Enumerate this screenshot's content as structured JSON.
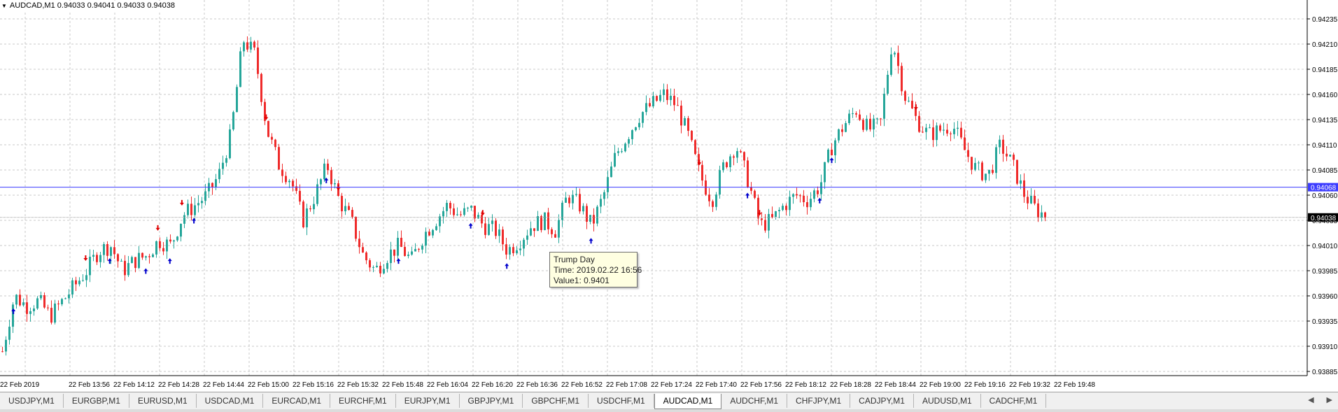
{
  "header": {
    "text": "AUDCAD,M1  0.94033 0.94041 0.94033 0.94038"
  },
  "tooltip": {
    "line1": "Trump Day",
    "line2": "Time: 2019.02.22 16:56",
    "line3": "Value1: 0.9401"
  },
  "price_axis": {
    "labels": [
      "0.94235",
      "0.94210",
      "0.94185",
      "0.94160",
      "0.94135",
      "0.94110",
      "0.94085",
      "0.94060",
      "0.94035",
      "0.94010",
      "0.93985",
      "0.93960",
      "0.93935",
      "0.93910",
      "0.93885"
    ],
    "line_label": "0.94068",
    "current_label": "0.94038"
  },
  "time_axis": {
    "labels": [
      "22 Feb 2019",
      "22 Feb 13:56",
      "22 Feb 14:12",
      "22 Feb 14:28",
      "22 Feb 14:44",
      "22 Feb 15:00",
      "22 Feb 15:16",
      "22 Feb 15:32",
      "22 Feb 15:48",
      "22 Feb 16:04",
      "22 Feb 16:20",
      "22 Feb 16:36",
      "22 Feb 16:52",
      "22 Feb 17:08",
      "22 Feb 17:24",
      "22 Feb 17:40",
      "22 Feb 17:56",
      "22 Feb 18:12",
      "22 Feb 18:28",
      "22 Feb 18:44",
      "22 Feb 19:00",
      "22 Feb 19:16",
      "22 Feb 19:32",
      "22 Feb 19:48"
    ]
  },
  "colors": {
    "bull": "#26a69a",
    "bear": "#ef2b2b",
    "up_arrow": "#0000cc",
    "down_arrow": "#e00000",
    "hline": "#3c3cff",
    "grid": "#c8c8c8"
  },
  "chart_data": {
    "type": "candlestick",
    "symbol": "AUDCAD,M1",
    "ylim": [
      0.93885,
      0.9424
    ],
    "horizontal_line": 0.94068,
    "current_price": 0.94038,
    "close_path": [
      0.93905,
      0.9396,
      0.9395,
      0.93955,
      0.9394,
      0.93955,
      0.9397,
      0.93985,
      0.94005,
      0.9401,
      0.93985,
      0.93995,
      0.94,
      0.94015,
      0.9401,
      0.9404,
      0.9405,
      0.9406,
      0.9408,
      0.9412,
      0.94215,
      0.942,
      0.94125,
      0.9409,
      0.94075,
      0.94035,
      0.9406,
      0.9409,
      0.94055,
      0.94035,
      0.94,
      0.93985,
      0.94,
      0.9401,
      0.93995,
      0.9402,
      0.94035,
      0.9405,
      0.9404,
      0.94045,
      0.9403,
      0.94025,
      0.94005,
      0.94015,
      0.9403,
      0.94035,
      0.94025,
      0.9406,
      0.9405,
      0.9403,
      0.9406,
      0.941,
      0.9412,
      0.9414,
      0.9415,
      0.9416,
      0.9415,
      0.9412,
      0.9408,
      0.94055,
      0.9409,
      0.9411,
      0.94075,
      0.9403,
      0.94035,
      0.9405,
      0.9406,
      0.94055,
      0.9407,
      0.9411,
      0.9413,
      0.94145,
      0.94125,
      0.9413,
      0.94215,
      0.9416,
      0.94135,
      0.9412,
      0.94125,
      0.9413,
      0.94105,
      0.94085,
      0.9408,
      0.9411,
      0.9409,
      0.9406,
      0.94045,
      0.94038
    ],
    "arrows": [
      {
        "dir": "up",
        "i": 1
      },
      {
        "dir": "down",
        "i": 7
      },
      {
        "dir": "up",
        "i": 9
      },
      {
        "dir": "up",
        "i": 12
      },
      {
        "dir": "down",
        "i": 13
      },
      {
        "dir": "up",
        "i": 14
      },
      {
        "dir": "down",
        "i": 15
      },
      {
        "dir": "up",
        "i": 16
      },
      {
        "dir": "down",
        "i": 22
      },
      {
        "dir": "up",
        "i": 27
      },
      {
        "dir": "down",
        "i": 28
      },
      {
        "dir": "up",
        "i": 33
      },
      {
        "dir": "up",
        "i": 39
      },
      {
        "dir": "down",
        "i": 40
      },
      {
        "dir": "up",
        "i": 42
      },
      {
        "dir": "up",
        "i": 49
      },
      {
        "dir": "down",
        "i": 58
      },
      {
        "dir": "up",
        "i": 62
      },
      {
        "dir": "down",
        "i": 63
      },
      {
        "dir": "up",
        "i": 68
      },
      {
        "dir": "up",
        "i": 69
      },
      {
        "dir": "down",
        "i": 76
      }
    ]
  },
  "tabs": [
    "USDJPY,M1",
    "EURGBP,M1",
    "EURUSD,M1",
    "USDCAD,M1",
    "EURCAD,M1",
    "EURCHF,M1",
    "EURJPY,M1",
    "GBPJPY,M1",
    "GBPCHF,M1",
    "USDCHF,M1",
    "AUDCAD,M1",
    "AUDCHF,M1",
    "CHFJPY,M1",
    "CADJPY,M1",
    "AUDUSD,M1",
    "CADCHF,M1"
  ],
  "active_tab": "AUDCAD,M1"
}
